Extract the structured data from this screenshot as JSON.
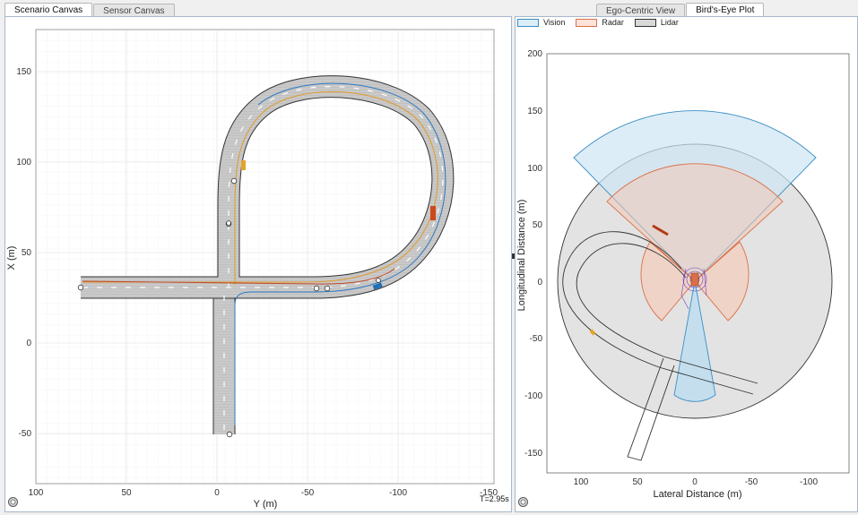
{
  "left_tabs": [
    {
      "label": "Scenario Canvas",
      "active": true
    },
    {
      "label": "Sensor Canvas",
      "active": false
    }
  ],
  "right_tabs": [
    {
      "label": "Ego-Centric View",
      "active": false
    },
    {
      "label": "Bird's-Eye Plot",
      "active": true
    }
  ],
  "scenario_canvas": {
    "xlabel": "Y (m)",
    "ylabel": "X (m)",
    "y_ticks": [
      "150",
      "100",
      "50",
      "0",
      "-50"
    ],
    "x_ticks": [
      "100",
      "50",
      "0",
      "-50",
      "-100",
      "-150"
    ],
    "sim_time": "T=2.95s"
  },
  "legend": {
    "items": [
      {
        "label": "Vision",
        "fill": "#dceef8",
        "edge": "#3a8fc4"
      },
      {
        "label": "Radar",
        "fill": "#fbe3d9",
        "edge": "#d9704a"
      },
      {
        "label": "Lidar",
        "fill": "#d9d9d9",
        "edge": "#333333"
      }
    ]
  },
  "birds_eye": {
    "xlabel": "Lateral Distance (m)",
    "ylabel": "Longitudinal Distance (m)",
    "y_ticks": [
      "200",
      "150",
      "100",
      "50",
      "0",
      "-50",
      "-100",
      "-150"
    ],
    "x_ticks": [
      "100",
      "50",
      "0",
      "-50",
      "-100"
    ]
  },
  "colors": {
    "road": "#c8c8c8",
    "ego": "#1f6fb5",
    "vehicle_orange": "#cc4a1a",
    "vehicle_yellow": "#e2a526"
  }
}
